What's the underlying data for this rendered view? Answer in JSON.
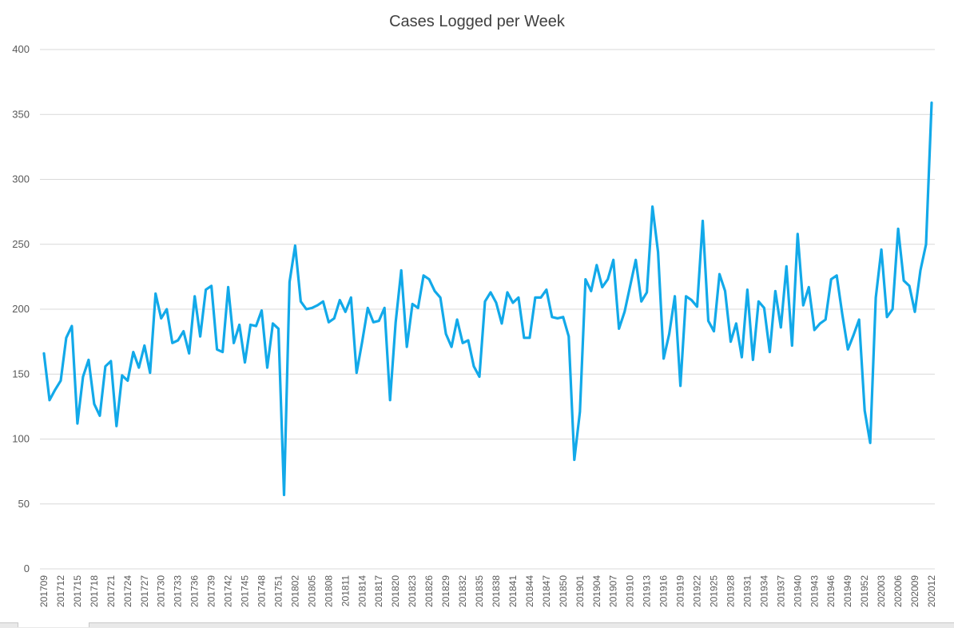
{
  "chart_data": {
    "type": "line",
    "title": "Cases Logged per Week",
    "xlabel": "",
    "ylabel": "",
    "ylim": [
      0,
      400
    ],
    "yticks": [
      0,
      50,
      100,
      150,
      200,
      250,
      300,
      350,
      400
    ],
    "grid": "horizontal",
    "legend": "none",
    "line_color": "#12A9E9",
    "x": [
      "201709",
      "201710",
      "201711",
      "201712",
      "201713",
      "201714",
      "201715",
      "201716",
      "201717",
      "201718",
      "201719",
      "201720",
      "201721",
      "201722",
      "201723",
      "201724",
      "201725",
      "201726",
      "201727",
      "201728",
      "201729",
      "201730",
      "201731",
      "201732",
      "201733",
      "201734",
      "201735",
      "201736",
      "201737",
      "201738",
      "201739",
      "201740",
      "201741",
      "201742",
      "201743",
      "201744",
      "201745",
      "201746",
      "201747",
      "201748",
      "201749",
      "201750",
      "201751",
      "201752",
      "201801",
      "201802",
      "201803",
      "201804",
      "201805",
      "201806",
      "201807",
      "201808",
      "201809",
      "201810",
      "201811",
      "201812",
      "201813",
      "201814",
      "201815",
      "201816",
      "201817",
      "201818",
      "201819",
      "201820",
      "201821",
      "201822",
      "201823",
      "201824",
      "201825",
      "201826",
      "201827",
      "201828",
      "201829",
      "201830",
      "201831",
      "201832",
      "201833",
      "201834",
      "201835",
      "201836",
      "201837",
      "201838",
      "201839",
      "201840",
      "201841",
      "201842",
      "201843",
      "201844",
      "201845",
      "201846",
      "201847",
      "201848",
      "201849",
      "201850",
      "201851",
      "201852",
      "201901",
      "201902",
      "201903",
      "201904",
      "201905",
      "201906",
      "201907",
      "201908",
      "201909",
      "201910",
      "201911",
      "201912",
      "201913",
      "201914",
      "201915",
      "201916",
      "201917",
      "201918",
      "201919",
      "201920",
      "201921",
      "201922",
      "201923",
      "201924",
      "201925",
      "201926",
      "201927",
      "201928",
      "201929",
      "201930",
      "201931",
      "201932",
      "201933",
      "201934",
      "201935",
      "201936",
      "201937",
      "201938",
      "201939",
      "201940",
      "201941",
      "201942",
      "201943",
      "201944",
      "201945",
      "201946",
      "201947",
      "201948",
      "201949",
      "201950",
      "201951",
      "201952",
      "202001",
      "202002",
      "202003",
      "202004",
      "202005",
      "202006",
      "202007",
      "202008",
      "202009",
      "202010",
      "202011",
      "202012"
    ],
    "xtick_labels": [
      "201709",
      "201712",
      "201715",
      "201718",
      "201721",
      "201724",
      "201727",
      "201730",
      "201733",
      "201736",
      "201739",
      "201742",
      "201745",
      "201748",
      "201751",
      "201802",
      "201805",
      "201808",
      "201811",
      "201814",
      "201817",
      "201820",
      "201823",
      "201826",
      "201829",
      "201832",
      "201835",
      "201838",
      "201841",
      "201844",
      "201847",
      "201850",
      "201901",
      "201904",
      "201907",
      "201910",
      "201913",
      "201916",
      "201919",
      "201922",
      "201925",
      "201928",
      "201931",
      "201934",
      "201937",
      "201940",
      "201943",
      "201946",
      "201949",
      "201952",
      "202003",
      "202006",
      "202009",
      "202012"
    ],
    "series": [
      {
        "values": [
          166,
          130,
          138,
          145,
          178,
          187,
          112,
          148,
          161,
          127,
          118,
          156,
          160,
          110,
          149,
          145,
          167,
          155,
          172,
          151,
          212,
          193,
          200,
          174,
          176,
          183,
          166,
          210,
          179,
          215,
          218,
          169,
          167,
          217,
          174,
          188,
          159,
          188,
          187,
          199,
          155,
          189,
          185,
          57,
          221,
          249,
          206,
          200,
          201,
          203,
          206,
          190,
          193,
          207,
          198,
          209,
          151,
          175,
          201,
          190,
          191,
          201,
          130,
          190,
          230,
          171,
          204,
          201,
          226,
          223,
          214,
          209,
          181,
          171,
          192,
          174,
          176,
          156,
          148,
          206,
          213,
          205,
          189,
          213,
          205,
          209,
          178,
          178,
          209,
          209,
          215,
          194,
          193,
          194,
          179,
          84,
          121,
          223,
          214,
          234,
          217,
          223,
          238,
          185,
          198,
          218,
          238,
          206,
          213,
          279,
          244,
          162,
          181,
          210,
          141,
          210,
          207,
          202,
          268,
          191,
          183,
          227,
          214,
          175,
          189,
          163,
          215,
          161,
          206,
          201,
          167,
          214,
          186,
          233,
          172,
          258,
          203,
          217,
          184,
          189,
          192,
          223,
          226,
          196,
          169,
          180,
          192,
          122,
          97,
          209,
          246,
          194,
          200,
          262,
          222,
          218,
          198,
          230,
          250,
          359
        ]
      }
    ]
  }
}
